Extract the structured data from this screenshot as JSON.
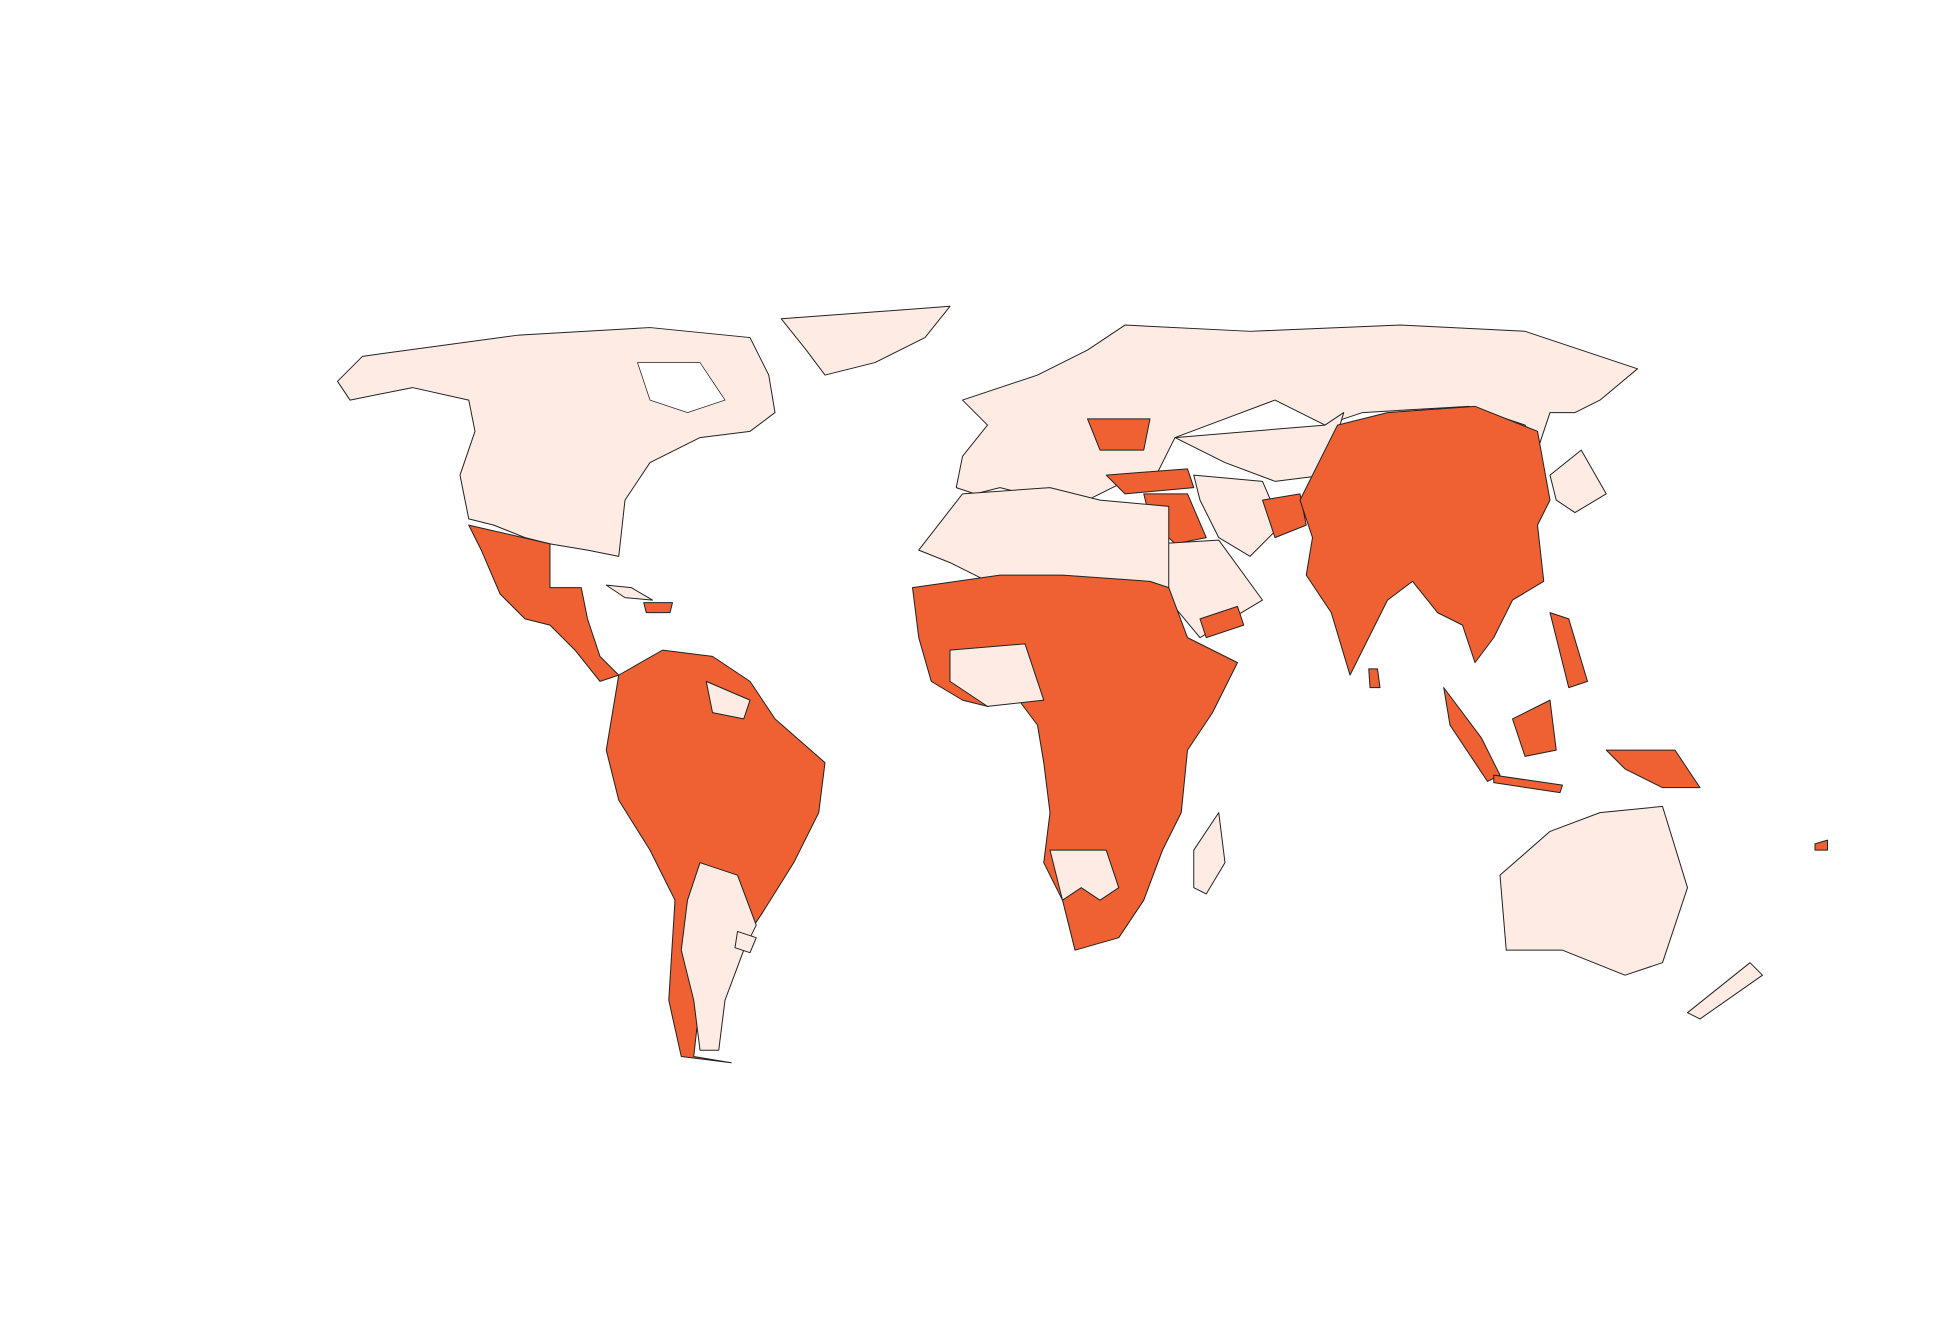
{
  "map": {
    "type": "choropleth",
    "projection": "world",
    "colors": {
      "highlighted": "#EF6033",
      "base": "#FEECE4",
      "border": "#222222",
      "background": "#FFFFFF"
    },
    "regions": [
      {
        "name": "north-america",
        "status": "base"
      },
      {
        "name": "greenland",
        "status": "base"
      },
      {
        "name": "mexico-central-america",
        "status": "highlighted"
      },
      {
        "name": "cuba",
        "status": "base"
      },
      {
        "name": "hispaniola",
        "status": "highlighted"
      },
      {
        "name": "south-america-north",
        "status": "highlighted"
      },
      {
        "name": "guianas",
        "status": "base"
      },
      {
        "name": "argentina",
        "status": "base"
      },
      {
        "name": "uruguay",
        "status": "base"
      },
      {
        "name": "europe-russia",
        "status": "base"
      },
      {
        "name": "ukraine",
        "status": "highlighted"
      },
      {
        "name": "turkey",
        "status": "highlighted"
      },
      {
        "name": "syria-iraq",
        "status": "highlighted"
      },
      {
        "name": "arabia",
        "status": "base"
      },
      {
        "name": "iran",
        "status": "base"
      },
      {
        "name": "yemen",
        "status": "highlighted"
      },
      {
        "name": "afghanistan",
        "status": "highlighted"
      },
      {
        "name": "central-asia",
        "status": "base"
      },
      {
        "name": "china-india-southeast-asia",
        "status": "highlighted"
      },
      {
        "name": "korea-japan",
        "status": "base"
      },
      {
        "name": "north-africa",
        "status": "base"
      },
      {
        "name": "sub-saharan-africa",
        "status": "highlighted"
      },
      {
        "name": "west-africa-coast",
        "status": "base"
      },
      {
        "name": "namibia-botswana",
        "status": "base"
      },
      {
        "name": "madagascar",
        "status": "base"
      },
      {
        "name": "sumatra",
        "status": "highlighted"
      },
      {
        "name": "borneo",
        "status": "highlighted"
      },
      {
        "name": "java",
        "status": "highlighted"
      },
      {
        "name": "philippines",
        "status": "highlighted"
      },
      {
        "name": "papua-new-guinea",
        "status": "highlighted"
      },
      {
        "name": "australia",
        "status": "base"
      },
      {
        "name": "new-zealand",
        "status": "base"
      },
      {
        "name": "sri-lanka",
        "status": "highlighted"
      },
      {
        "name": "fiji",
        "status": "highlighted"
      }
    ]
  }
}
